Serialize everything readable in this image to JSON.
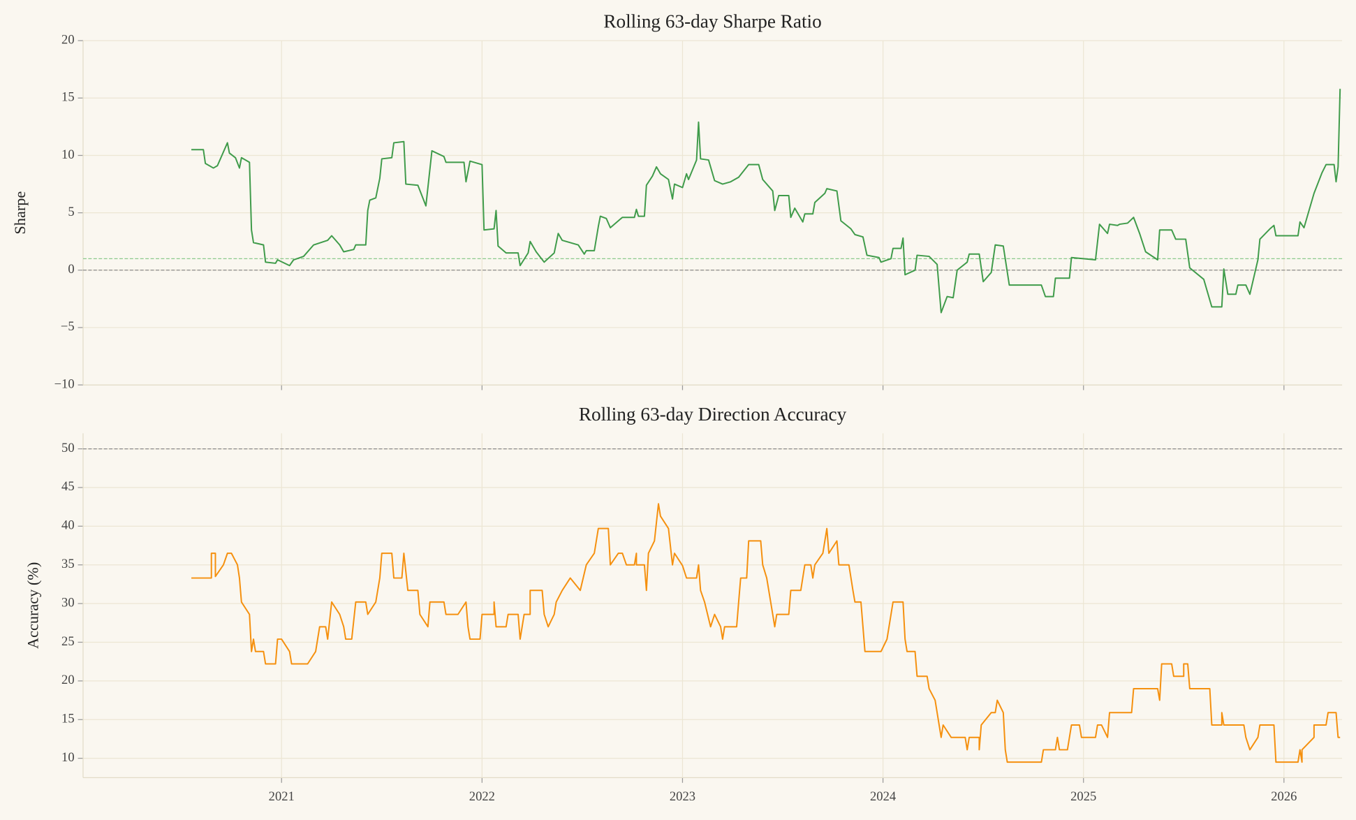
{
  "chart_data": [
    {
      "type": "line",
      "title": "Rolling 63-day Sharpe Ratio",
      "ylabel": "Sharpe",
      "color": "#3f9b4a",
      "xlim": [
        2020.01,
        2026.29
      ],
      "xticks": [
        2021,
        2022,
        2023,
        2024,
        2025,
        2026
      ],
      "ylim": [
        -10,
        20
      ],
      "yticks": [
        {
          "value": -10,
          "label": "−10"
        },
        {
          "value": -5,
          "label": "−5"
        },
        0,
        5,
        10,
        15,
        20
      ],
      "grid": true,
      "hlines": [
        {
          "value": 0,
          "color": "#8a8a8a"
        },
        {
          "value": 1,
          "color": "#8cc98c"
        }
      ],
      "x": [
        2020.55,
        2020.61,
        2020.62,
        2020.66,
        2020.68,
        2020.73,
        2020.74,
        2020.77,
        2020.79,
        2020.8,
        2020.84,
        2020.85,
        2020.86,
        2020.91,
        2020.92,
        2020.97,
        2020.98,
        2021.04,
        2021.06,
        2021.11,
        2021.16,
        2021.23,
        2021.25,
        2021.29,
        2021.31,
        2021.36,
        2021.37,
        2021.42,
        2021.43,
        2021.44,
        2021.47,
        2021.49,
        2021.5,
        2021.55,
        2021.56,
        2021.61,
        2021.62,
        2021.68,
        2021.72,
        2021.75,
        2021.81,
        2021.82,
        2021.91,
        2021.92,
        2021.94,
        2022.0,
        2022.01,
        2022.06,
        2022.07,
        2022.08,
        2022.12,
        2022.18,
        2022.19,
        2022.23,
        2022.24,
        2022.27,
        2022.31,
        2022.36,
        2022.38,
        2022.4,
        2022.48,
        2022.51,
        2022.52,
        2022.56,
        2022.58,
        2022.59,
        2022.62,
        2022.64,
        2022.7,
        2022.76,
        2022.77,
        2022.78,
        2022.81,
        2022.82,
        2022.85,
        2022.87,
        2022.89,
        2022.93,
        2022.95,
        2022.96,
        2023.0,
        2023.02,
        2023.03,
        2023.07,
        2023.08,
        2023.09,
        2023.13,
        2023.16,
        2023.2,
        2023.24,
        2023.28,
        2023.33,
        2023.38,
        2023.4,
        2023.45,
        2023.46,
        2023.48,
        2023.53,
        2023.54,
        2023.56,
        2023.6,
        2023.61,
        2023.65,
        2023.66,
        2023.71,
        2023.72,
        2023.77,
        2023.79,
        2023.84,
        2023.86,
        2023.9,
        2023.92,
        2023.98,
        2023.99,
        2024.04,
        2024.05,
        2024.09,
        2024.1,
        2024.11,
        2024.16,
        2024.17,
        2024.23,
        2024.27,
        2024.29,
        2024.32,
        2024.35,
        2024.37,
        2024.42,
        2024.43,
        2024.48,
        2024.5,
        2024.54,
        2024.56,
        2024.6,
        2024.63,
        2024.79,
        2024.81,
        2024.85,
        2024.86,
        2024.93,
        2024.94,
        2025.06,
        2025.08,
        2025.12,
        2025.13,
        2025.17,
        2025.18,
        2025.22,
        2025.25,
        2025.28,
        2025.31,
        2025.37,
        2025.38,
        2025.44,
        2025.46,
        2025.51,
        2025.53,
        2025.6,
        2025.64,
        2025.69,
        2025.7,
        2025.72,
        2025.76,
        2025.77,
        2025.81,
        2025.83,
        2025.87,
        2025.88,
        2025.93,
        2025.95,
        2025.96,
        2026.07,
        2026.08,
        2026.1,
        2026.15,
        2026.19,
        2026.21,
        2026.25,
        2026.26,
        2026.27,
        2026.28
      ],
      "values": [
        10.5,
        10.5,
        9.3,
        8.9,
        9.1,
        11.1,
        10.2,
        9.8,
        8.9,
        9.8,
        9.4,
        3.5,
        2.4,
        2.2,
        0.7,
        0.6,
        0.9,
        0.4,
        0.9,
        1.2,
        2.2,
        2.6,
        3.0,
        2.2,
        1.6,
        1.8,
        2.2,
        2.2,
        5.2,
        6.1,
        6.3,
        8.0,
        9.7,
        9.8,
        11.1,
        11.2,
        7.5,
        7.4,
        5.6,
        10.4,
        9.9,
        9.4,
        9.4,
        7.7,
        9.5,
        9.2,
        3.5,
        3.6,
        5.2,
        2.1,
        1.5,
        1.5,
        0.4,
        1.5,
        2.5,
        1.6,
        0.7,
        1.5,
        3.2,
        2.6,
        2.2,
        1.4,
        1.7,
        1.7,
        3.8,
        4.7,
        4.5,
        3.7,
        4.6,
        4.6,
        5.3,
        4.7,
        4.7,
        7.4,
        8.2,
        9.0,
        8.4,
        7.9,
        6.2,
        7.5,
        7.2,
        8.4,
        7.9,
        9.6,
        12.9,
        9.7,
        9.6,
        7.8,
        7.5,
        7.7,
        8.1,
        9.2,
        9.2,
        7.9,
        6.9,
        5.2,
        6.5,
        6.5,
        4.6,
        5.4,
        4.2,
        4.9,
        4.9,
        5.9,
        6.7,
        7.1,
        6.9,
        4.3,
        3.6,
        3.1,
        2.9,
        1.3,
        1.1,
        0.7,
        1.0,
        1.9,
        1.9,
        2.8,
        -0.4,
        0,
        1.3,
        1.2,
        0.5,
        -3.7,
        -2.3,
        -2.4,
        0,
        0.7,
        1.4,
        1.4,
        -1.0,
        -0.2,
        2.2,
        2.1,
        -1.3,
        -1.3,
        -2.3,
        -2.3,
        -0.7,
        -0.7,
        1.1,
        0.9,
        4.0,
        3.2,
        4.0,
        3.9,
        4.0,
        4.1,
        4.6,
        3.2,
        1.6,
        0.9,
        3.5,
        3.5,
        2.7,
        2.7,
        0.2,
        -0.8,
        -3.2,
        -3.2,
        0.1,
        -2.1,
        -2.1,
        -1.3,
        -1.3,
        -2.1,
        0.9,
        2.7,
        3.6,
        3.9,
        3.0,
        3.0,
        4.2,
        3.7,
        6.7,
        8.5,
        9.2,
        9.2,
        7.7,
        9.0,
        15.8
      ]
    },
    {
      "type": "line",
      "title": "Rolling 63-day Direction Accuracy",
      "ylabel": "Accuracy (%)",
      "color": "#f5900e",
      "xlim": [
        2020.01,
        2026.29
      ],
      "xticks": [
        2021,
        2022,
        2023,
        2024,
        2025,
        2026
      ],
      "ylim": [
        7.5,
        52
      ],
      "yticks": [
        10,
        15,
        20,
        25,
        30,
        35,
        40,
        45,
        50
      ],
      "grid": true,
      "hlines": [
        {
          "value": 50,
          "color": "#8a8a8a"
        }
      ],
      "x": [
        2020.55,
        2020.65,
        2020.65,
        2020.67,
        2020.67,
        2020.71,
        2020.73,
        2020.75,
        2020.78,
        2020.79,
        2020.8,
        2020.84,
        2020.85,
        2020.86,
        2020.87,
        2020.91,
        2020.92,
        2020.97,
        2020.98,
        2021.0,
        2021.04,
        2021.05,
        2021.13,
        2021.17,
        2021.18,
        2021.19,
        2021.22,
        2021.23,
        2021.25,
        2021.29,
        2021.31,
        2021.32,
        2021.35,
        2021.37,
        2021.42,
        2021.43,
        2021.47,
        2021.49,
        2021.5,
        2021.55,
        2021.56,
        2021.6,
        2021.61,
        2021.63,
        2021.68,
        2021.69,
        2021.73,
        2021.74,
        2021.81,
        2021.82,
        2021.88,
        2021.92,
        2021.93,
        2021.94,
        2021.99,
        2022.0,
        2022.06,
        2022.06,
        2022.07,
        2022.12,
        2022.13,
        2022.18,
        2022.19,
        2022.21,
        2022.24,
        2022.24,
        2022.3,
        2022.31,
        2022.33,
        2022.36,
        2022.37,
        2022.4,
        2022.44,
        2022.49,
        2022.52,
        2022.56,
        2022.58,
        2022.63,
        2022.64,
        2022.68,
        2022.7,
        2022.72,
        2022.76,
        2022.77,
        2022.77,
        2022.81,
        2022.82,
        2022.83,
        2022.86,
        2022.88,
        2022.89,
        2022.93,
        2022.95,
        2022.96,
        2023.0,
        2023.02,
        2023.07,
        2023.08,
        2023.09,
        2023.11,
        2023.14,
        2023.16,
        2023.19,
        2023.2,
        2023.21,
        2023.27,
        2023.28,
        2023.29,
        2023.32,
        2023.33,
        2023.39,
        2023.4,
        2023.42,
        2023.45,
        2023.46,
        2023.47,
        2023.53,
        2023.54,
        2023.59,
        2023.61,
        2023.64,
        2023.65,
        2023.66,
        2023.7,
        2023.72,
        2023.73,
        2023.77,
        2023.78,
        2023.83,
        2023.85,
        2023.86,
        2023.89,
        2023.91,
        2023.99,
        2024.02,
        2024.04,
        2024.05,
        2024.1,
        2024.11,
        2024.12,
        2024.16,
        2024.17,
        2024.22,
        2024.23,
        2024.26,
        2024.29,
        2024.3,
        2024.34,
        2024.41,
        2024.42,
        2024.43,
        2024.48,
        2024.48,
        2024.49,
        2024.54,
        2024.56,
        2024.57,
        2024.6,
        2024.61,
        2024.62,
        2024.79,
        2024.8,
        2024.86,
        2024.87,
        2024.88,
        2024.92,
        2024.94,
        2024.98,
        2024.99,
        2025.06,
        2025.07,
        2025.09,
        2025.12,
        2025.13,
        2025.24,
        2025.25,
        2025.37,
        2025.38,
        2025.39,
        2025.44,
        2025.45,
        2025.5,
        2025.5,
        2025.52,
        2025.53,
        2025.63,
        2025.64,
        2025.69,
        2025.69,
        2025.7,
        2025.8,
        2025.81,
        2025.83,
        2025.87,
        2025.88,
        2025.95,
        2025.96,
        2026.07,
        2026.08,
        2026.09,
        2026.09,
        2026.15,
        2026.15,
        2026.21,
        2026.22,
        2026.26,
        2026.27,
        2026.28
      ],
      "values": [
        33.3,
        33.3,
        36.5,
        36.5,
        33.5,
        35.0,
        36.5,
        36.5,
        35.0,
        33.3,
        30.2,
        28.6,
        23.8,
        25.4,
        23.8,
        23.8,
        22.2,
        22.2,
        25.4,
        25.4,
        23.8,
        22.2,
        22.2,
        23.8,
        25.4,
        27.0,
        27.0,
        25.4,
        30.2,
        28.6,
        27.0,
        25.4,
        25.4,
        30.2,
        30.2,
        28.6,
        30.2,
        33.3,
        36.5,
        36.5,
        33.3,
        33.3,
        36.5,
        31.7,
        31.7,
        28.6,
        27.0,
        30.2,
        30.2,
        28.6,
        28.6,
        30.2,
        27.0,
        25.4,
        25.4,
        28.6,
        28.6,
        30.2,
        27.0,
        27.0,
        28.6,
        28.6,
        25.4,
        28.6,
        28.6,
        31.7,
        31.7,
        28.6,
        27.0,
        28.6,
        30.2,
        31.7,
        33.3,
        31.7,
        35.0,
        36.5,
        39.7,
        39.7,
        35.0,
        36.5,
        36.5,
        35.0,
        35.0,
        36.5,
        35.0,
        35.0,
        31.7,
        36.5,
        38.1,
        42.9,
        41.3,
        39.7,
        35.0,
        36.5,
        34.9,
        33.3,
        33.3,
        35.0,
        31.7,
        30.2,
        27.0,
        28.6,
        27.0,
        25.4,
        27.0,
        27.0,
        30.2,
        33.3,
        33.3,
        38.1,
        38.1,
        35.0,
        33.3,
        28.6,
        27.0,
        28.6,
        28.6,
        31.7,
        31.7,
        35.0,
        35.0,
        33.3,
        35.0,
        36.5,
        39.7,
        36.5,
        38.1,
        35.0,
        35.0,
        31.7,
        30.2,
        30.2,
        23.8,
        23.8,
        25.4,
        28.6,
        30.2,
        30.2,
        25.4,
        23.8,
        23.8,
        20.6,
        20.6,
        19.0,
        17.5,
        12.7,
        14.3,
        12.7,
        12.7,
        11.1,
        12.7,
        12.7,
        11.1,
        14.3,
        15.9,
        15.9,
        17.5,
        15.9,
        11.1,
        9.5,
        9.5,
        11.1,
        11.1,
        12.7,
        11.1,
        11.1,
        14.3,
        14.3,
        12.7,
        12.7,
        14.3,
        14.3,
        12.7,
        15.9,
        15.9,
        19.0,
        19.0,
        17.5,
        22.2,
        22.2,
        20.6,
        20.6,
        22.2,
        22.2,
        19.0,
        19.0,
        14.3,
        14.3,
        15.9,
        14.3,
        14.3,
        12.7,
        11.1,
        12.7,
        14.3,
        14.3,
        9.5,
        9.5,
        11.1,
        9.5,
        11.1,
        12.7,
        14.3,
        14.3,
        15.9,
        15.9,
        12.7,
        12.7
      ]
    }
  ]
}
